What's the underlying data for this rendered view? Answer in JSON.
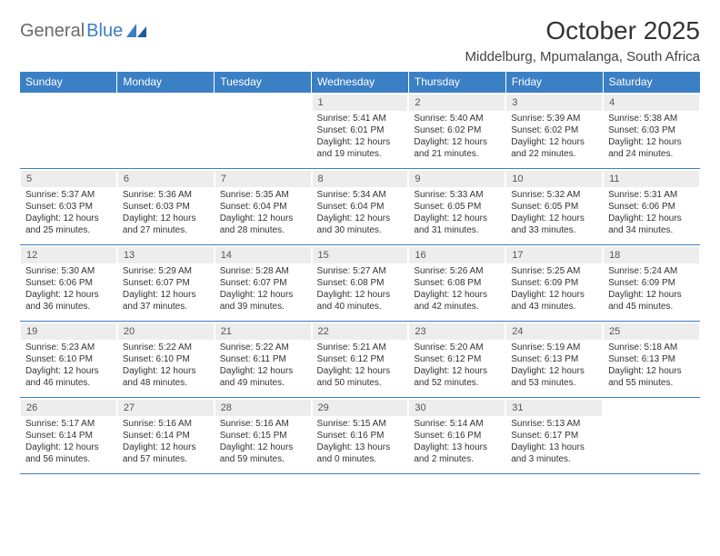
{
  "logo": {
    "text1": "General",
    "text2": "Blue"
  },
  "title": "October 2025",
  "subtitle": "Middelburg, Mpumalanga, South Africa",
  "colors": {
    "header_bg": "#3b7fc4",
    "header_text": "#ffffff",
    "daynum_bg": "#ededed",
    "border": "#3b7fc4",
    "body_text": "#333333",
    "logo_gray": "#6a6a6a"
  },
  "day_headers": [
    "Sunday",
    "Monday",
    "Tuesday",
    "Wednesday",
    "Thursday",
    "Friday",
    "Saturday"
  ],
  "weeks": [
    [
      {
        "num": "",
        "sunrise": "",
        "sunset": "",
        "daylight": ""
      },
      {
        "num": "",
        "sunrise": "",
        "sunset": "",
        "daylight": ""
      },
      {
        "num": "",
        "sunrise": "",
        "sunset": "",
        "daylight": ""
      },
      {
        "num": "1",
        "sunrise": "Sunrise: 5:41 AM",
        "sunset": "Sunset: 6:01 PM",
        "daylight": "Daylight: 12 hours and 19 minutes."
      },
      {
        "num": "2",
        "sunrise": "Sunrise: 5:40 AM",
        "sunset": "Sunset: 6:02 PM",
        "daylight": "Daylight: 12 hours and 21 minutes."
      },
      {
        "num": "3",
        "sunrise": "Sunrise: 5:39 AM",
        "sunset": "Sunset: 6:02 PM",
        "daylight": "Daylight: 12 hours and 22 minutes."
      },
      {
        "num": "4",
        "sunrise": "Sunrise: 5:38 AM",
        "sunset": "Sunset: 6:03 PM",
        "daylight": "Daylight: 12 hours and 24 minutes."
      }
    ],
    [
      {
        "num": "5",
        "sunrise": "Sunrise: 5:37 AM",
        "sunset": "Sunset: 6:03 PM",
        "daylight": "Daylight: 12 hours and 25 minutes."
      },
      {
        "num": "6",
        "sunrise": "Sunrise: 5:36 AM",
        "sunset": "Sunset: 6:03 PM",
        "daylight": "Daylight: 12 hours and 27 minutes."
      },
      {
        "num": "7",
        "sunrise": "Sunrise: 5:35 AM",
        "sunset": "Sunset: 6:04 PM",
        "daylight": "Daylight: 12 hours and 28 minutes."
      },
      {
        "num": "8",
        "sunrise": "Sunrise: 5:34 AM",
        "sunset": "Sunset: 6:04 PM",
        "daylight": "Daylight: 12 hours and 30 minutes."
      },
      {
        "num": "9",
        "sunrise": "Sunrise: 5:33 AM",
        "sunset": "Sunset: 6:05 PM",
        "daylight": "Daylight: 12 hours and 31 minutes."
      },
      {
        "num": "10",
        "sunrise": "Sunrise: 5:32 AM",
        "sunset": "Sunset: 6:05 PM",
        "daylight": "Daylight: 12 hours and 33 minutes."
      },
      {
        "num": "11",
        "sunrise": "Sunrise: 5:31 AM",
        "sunset": "Sunset: 6:06 PM",
        "daylight": "Daylight: 12 hours and 34 minutes."
      }
    ],
    [
      {
        "num": "12",
        "sunrise": "Sunrise: 5:30 AM",
        "sunset": "Sunset: 6:06 PM",
        "daylight": "Daylight: 12 hours and 36 minutes."
      },
      {
        "num": "13",
        "sunrise": "Sunrise: 5:29 AM",
        "sunset": "Sunset: 6:07 PM",
        "daylight": "Daylight: 12 hours and 37 minutes."
      },
      {
        "num": "14",
        "sunrise": "Sunrise: 5:28 AM",
        "sunset": "Sunset: 6:07 PM",
        "daylight": "Daylight: 12 hours and 39 minutes."
      },
      {
        "num": "15",
        "sunrise": "Sunrise: 5:27 AM",
        "sunset": "Sunset: 6:08 PM",
        "daylight": "Daylight: 12 hours and 40 minutes."
      },
      {
        "num": "16",
        "sunrise": "Sunrise: 5:26 AM",
        "sunset": "Sunset: 6:08 PM",
        "daylight": "Daylight: 12 hours and 42 minutes."
      },
      {
        "num": "17",
        "sunrise": "Sunrise: 5:25 AM",
        "sunset": "Sunset: 6:09 PM",
        "daylight": "Daylight: 12 hours and 43 minutes."
      },
      {
        "num": "18",
        "sunrise": "Sunrise: 5:24 AM",
        "sunset": "Sunset: 6:09 PM",
        "daylight": "Daylight: 12 hours and 45 minutes."
      }
    ],
    [
      {
        "num": "19",
        "sunrise": "Sunrise: 5:23 AM",
        "sunset": "Sunset: 6:10 PM",
        "daylight": "Daylight: 12 hours and 46 minutes."
      },
      {
        "num": "20",
        "sunrise": "Sunrise: 5:22 AM",
        "sunset": "Sunset: 6:10 PM",
        "daylight": "Daylight: 12 hours and 48 minutes."
      },
      {
        "num": "21",
        "sunrise": "Sunrise: 5:22 AM",
        "sunset": "Sunset: 6:11 PM",
        "daylight": "Daylight: 12 hours and 49 minutes."
      },
      {
        "num": "22",
        "sunrise": "Sunrise: 5:21 AM",
        "sunset": "Sunset: 6:12 PM",
        "daylight": "Daylight: 12 hours and 50 minutes."
      },
      {
        "num": "23",
        "sunrise": "Sunrise: 5:20 AM",
        "sunset": "Sunset: 6:12 PM",
        "daylight": "Daylight: 12 hours and 52 minutes."
      },
      {
        "num": "24",
        "sunrise": "Sunrise: 5:19 AM",
        "sunset": "Sunset: 6:13 PM",
        "daylight": "Daylight: 12 hours and 53 minutes."
      },
      {
        "num": "25",
        "sunrise": "Sunrise: 5:18 AM",
        "sunset": "Sunset: 6:13 PM",
        "daylight": "Daylight: 12 hours and 55 minutes."
      }
    ],
    [
      {
        "num": "26",
        "sunrise": "Sunrise: 5:17 AM",
        "sunset": "Sunset: 6:14 PM",
        "daylight": "Daylight: 12 hours and 56 minutes."
      },
      {
        "num": "27",
        "sunrise": "Sunrise: 5:16 AM",
        "sunset": "Sunset: 6:14 PM",
        "daylight": "Daylight: 12 hours and 57 minutes."
      },
      {
        "num": "28",
        "sunrise": "Sunrise: 5:16 AM",
        "sunset": "Sunset: 6:15 PM",
        "daylight": "Daylight: 12 hours and 59 minutes."
      },
      {
        "num": "29",
        "sunrise": "Sunrise: 5:15 AM",
        "sunset": "Sunset: 6:16 PM",
        "daylight": "Daylight: 13 hours and 0 minutes."
      },
      {
        "num": "30",
        "sunrise": "Sunrise: 5:14 AM",
        "sunset": "Sunset: 6:16 PM",
        "daylight": "Daylight: 13 hours and 2 minutes."
      },
      {
        "num": "31",
        "sunrise": "Sunrise: 5:13 AM",
        "sunset": "Sunset: 6:17 PM",
        "daylight": "Daylight: 13 hours and 3 minutes."
      },
      {
        "num": "",
        "sunrise": "",
        "sunset": "",
        "daylight": ""
      }
    ]
  ]
}
